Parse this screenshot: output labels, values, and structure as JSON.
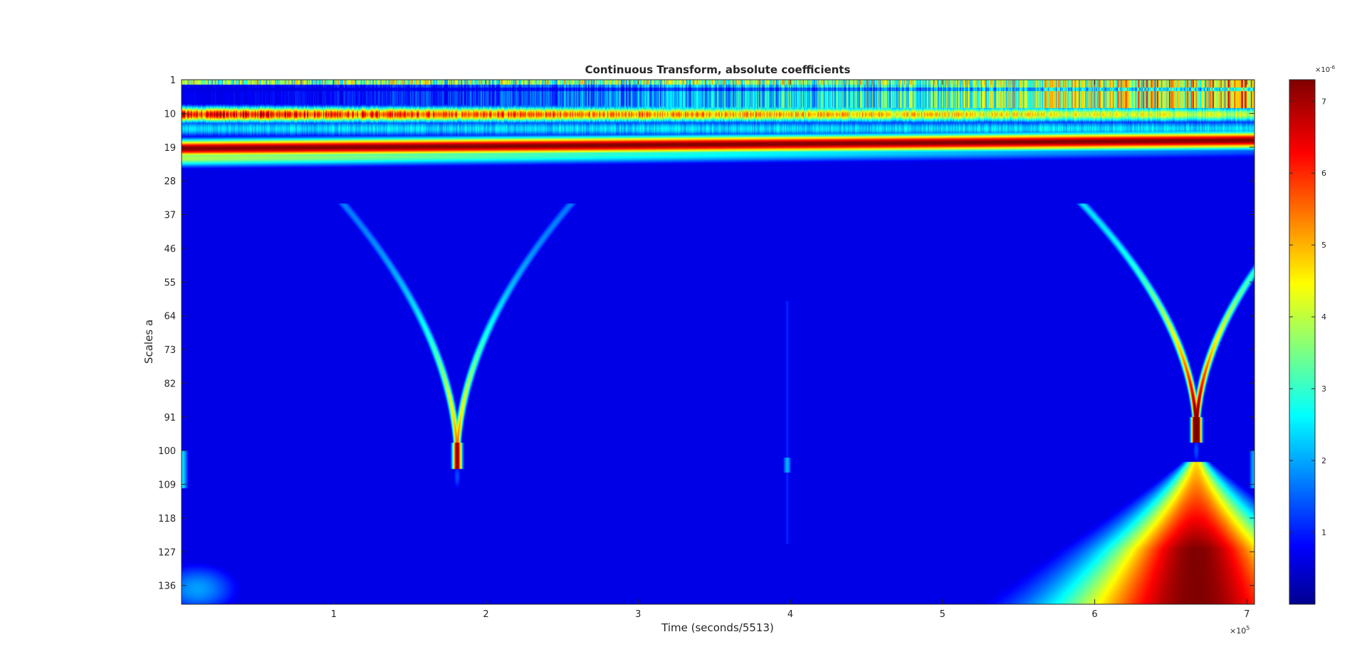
{
  "chart_data": {
    "type": "heatmap",
    "title": "Continuous Transform, absolute coefficients",
    "xlabel": "Time (seconds/5513)",
    "ylabel": "Scales a",
    "xlim": [
      0,
      705000
    ],
    "ylim": [
      1,
      141
    ],
    "x_ticks": [
      100000,
      200000,
      300000,
      400000,
      500000,
      600000,
      700000
    ],
    "x_tick_labels": [
      "1",
      "2",
      "3",
      "4",
      "5",
      "6",
      "7"
    ],
    "x_exponent_label": "×10",
    "x_exponent_power": "5",
    "y_ticks": [
      1,
      10,
      19,
      28,
      37,
      46,
      55,
      64,
      73,
      82,
      91,
      100,
      109,
      118,
      127,
      136
    ],
    "y_tick_labels": [
      "1",
      "10",
      "19",
      "28",
      "37",
      "46",
      "55",
      "64",
      "73",
      "82",
      "91",
      "100",
      "109",
      "118",
      "127",
      "136"
    ],
    "y_reversed": true,
    "colorbar": {
      "colormap": "jet",
      "range": [
        0,
        7.3e-06
      ],
      "ticks": [
        1,
        2,
        3,
        4,
        5,
        6,
        7
      ],
      "tick_labels": [
        "1",
        "2",
        "3",
        "4",
        "5",
        "6",
        "7"
      ],
      "exponent_label": "×10",
      "exponent_power": "-6"
    },
    "features": [
      {
        "kind": "band",
        "scale_range": [
          1,
          8
        ],
        "strength": "high-frequency, increasing toward right"
      },
      {
        "kind": "band",
        "scale_center": 10,
        "strength": "very high, left half"
      },
      {
        "kind": "band",
        "scale_center": 18,
        "strength": "very high, full width"
      },
      {
        "kind": "cone",
        "time": 181000,
        "scale_peak": 102,
        "arms_to_scale": 37
      },
      {
        "kind": "cone",
        "time": 667000,
        "scale_peak": 95,
        "arms_to_scale": 37,
        "base_to_scale": 141
      },
      {
        "kind": "faint-line",
        "time": 398000,
        "scale_range": [
          60,
          120
        ]
      }
    ]
  }
}
